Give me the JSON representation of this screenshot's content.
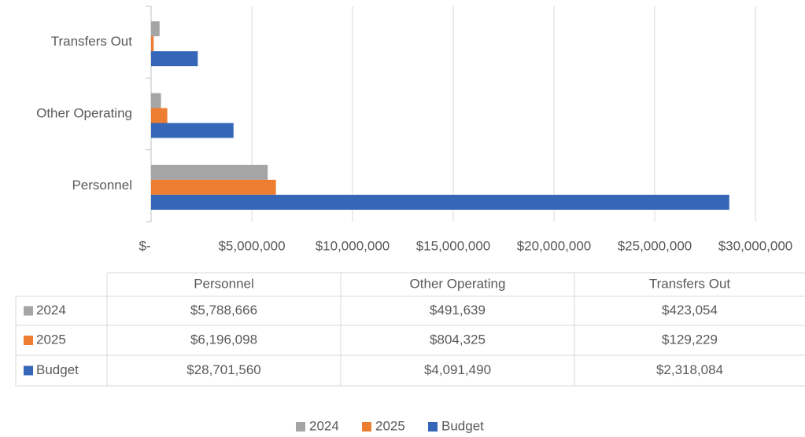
{
  "chart_data": {
    "type": "hbar",
    "categories": [
      "Personnel",
      "Other Operating",
      "Transfers Out"
    ],
    "series": [
      {
        "name": "2024",
        "color": "#a5a5a5",
        "values": [
          5788666,
          491639,
          423054
        ],
        "value_labels": [
          "$5,788,666",
          "$491,639",
          "$423,054"
        ]
      },
      {
        "name": "2025",
        "color": "#ed7d31",
        "values": [
          6196098,
          804325,
          129229
        ],
        "value_labels": [
          "$6,196,098",
          "$804,325",
          "$129,229"
        ]
      },
      {
        "name": "Budget",
        "color": "#3566b8",
        "values": [
          28701560,
          4091490,
          2318084
        ],
        "value_labels": [
          "$28,701,560",
          "$4,091,490",
          "$2,318,084"
        ]
      }
    ],
    "xlim": [
      0,
      30000000
    ],
    "xticks": [
      {
        "value": 0,
        "label": "$-"
      },
      {
        "value": 5000000,
        "label": "$5,000,000"
      },
      {
        "value": 10000000,
        "label": "$10,000,000"
      },
      {
        "value": 15000000,
        "label": "$15,000,000"
      },
      {
        "value": 20000000,
        "label": "$20,000,000"
      },
      {
        "value": 25000000,
        "label": "$25,000,000"
      },
      {
        "value": 30000000,
        "label": "$30,000,000"
      }
    ],
    "grid": true,
    "legend": "bottom",
    "data_table": true
  }
}
